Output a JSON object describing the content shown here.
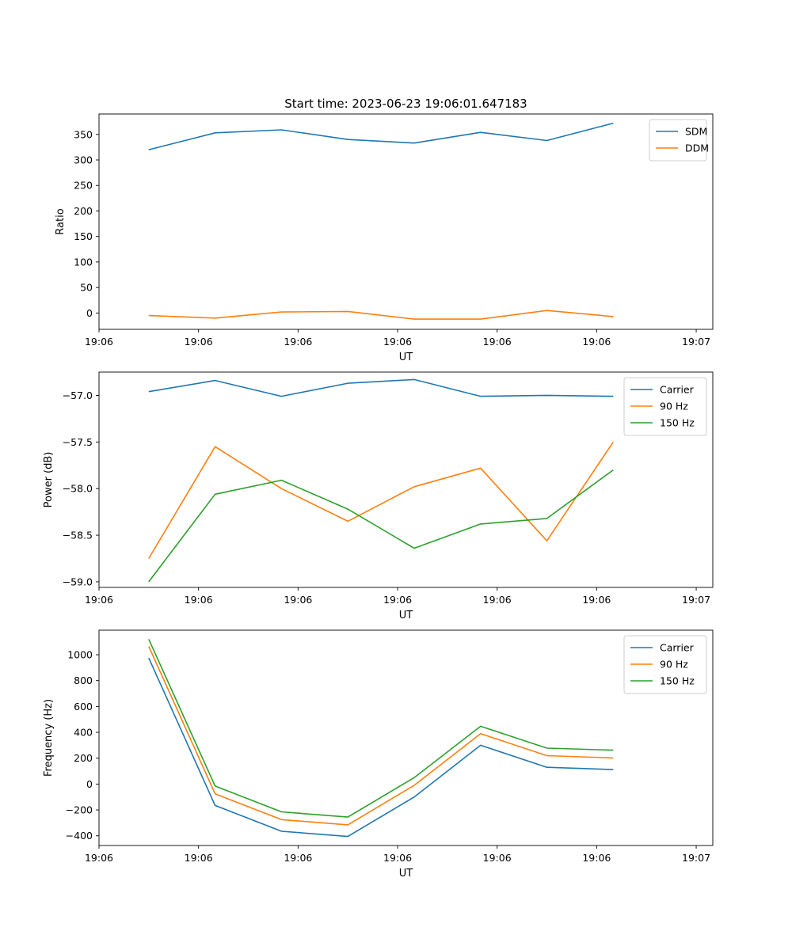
{
  "figure": {
    "title": "Start time: 2023-06-23 19:06:01.647183"
  },
  "colors": {
    "blue": "#1f77b4",
    "orange": "#ff7f0e",
    "green": "#2ca02c"
  },
  "chart_data": [
    {
      "type": "line",
      "title": "Start time: 2023-06-23 19:06:01.647183",
      "xlabel": "UT",
      "ylabel": "Ratio",
      "x_index": [
        0,
        1,
        2,
        3,
        4,
        5,
        6,
        7
      ],
      "xlim": [
        -0.75,
        8.5
      ],
      "xticks": [
        {
          "at": -0.75,
          "label": "19:06"
        },
        {
          "at": 0.75,
          "label": "19:06"
        },
        {
          "at": 2.25,
          "label": "19:06"
        },
        {
          "at": 3.75,
          "label": "19:06"
        },
        {
          "at": 5.25,
          "label": "19:06"
        },
        {
          "at": 6.75,
          "label": "19:06"
        },
        {
          "at": 8.25,
          "label": "19:07"
        }
      ],
      "ylim": [
        -32,
        390
      ],
      "yticks": [
        0,
        50,
        100,
        150,
        200,
        250,
        300,
        350
      ],
      "ytick_labels": [
        "0",
        "50",
        "100",
        "150",
        "200",
        "250",
        "300",
        "350"
      ],
      "legend": "upper-right",
      "series": [
        {
          "name": "SDM",
          "color": "#1f77b4",
          "values": [
            320,
            353,
            359,
            340,
            333,
            354,
            338,
            372
          ]
        },
        {
          "name": "DDM",
          "color": "#ff7f0e",
          "values": [
            -5,
            -10,
            2,
            3,
            -12,
            -12,
            5,
            -7
          ]
        }
      ]
    },
    {
      "type": "line",
      "xlabel": "UT",
      "ylabel": "Power (dB)",
      "x_index": [
        0,
        1,
        2,
        3,
        4,
        5,
        6,
        7
      ],
      "xlim": [
        -0.75,
        8.5
      ],
      "xticks": [
        {
          "at": -0.75,
          "label": "19:06"
        },
        {
          "at": 0.75,
          "label": "19:06"
        },
        {
          "at": 2.25,
          "label": "19:06"
        },
        {
          "at": 3.75,
          "label": "19:06"
        },
        {
          "at": 5.25,
          "label": "19:06"
        },
        {
          "at": 6.75,
          "label": "19:06"
        },
        {
          "at": 8.25,
          "label": "19:07"
        }
      ],
      "ylim": [
        -59.06,
        -56.75
      ],
      "yticks": [
        -59.0,
        -58.5,
        -58.0,
        -57.5,
        -57.0
      ],
      "ytick_labels": [
        "−59.0",
        "−58.5",
        "−58.0",
        "−57.5",
        "−57.0"
      ],
      "legend": "upper-right",
      "series": [
        {
          "name": "Carrier",
          "color": "#1f77b4",
          "values": [
            -56.96,
            -56.84,
            -57.01,
            -56.87,
            -56.83,
            -57.01,
            -57.0,
            -57.01
          ]
        },
        {
          "name": "90 Hz",
          "color": "#ff7f0e",
          "values": [
            -58.75,
            -57.55,
            -58.0,
            -58.35,
            -57.98,
            -57.78,
            -58.56,
            -57.5
          ]
        },
        {
          "name": "150 Hz",
          "color": "#2ca02c",
          "values": [
            -59.0,
            -58.06,
            -57.91,
            -58.22,
            -58.64,
            -58.38,
            -58.32,
            -57.8
          ]
        }
      ]
    },
    {
      "type": "line",
      "xlabel": "UT",
      "ylabel": "Frequency (Hz)",
      "x_index": [
        0,
        1,
        2,
        3,
        4,
        5,
        6,
        7
      ],
      "xlim": [
        -0.75,
        8.5
      ],
      "xticks": [
        {
          "at": -0.75,
          "label": "19:06"
        },
        {
          "at": 0.75,
          "label": "19:06"
        },
        {
          "at": 2.25,
          "label": "19:06"
        },
        {
          "at": 3.75,
          "label": "19:06"
        },
        {
          "at": 5.25,
          "label": "19:06"
        },
        {
          "at": 6.75,
          "label": "19:06"
        },
        {
          "at": 8.25,
          "label": "19:07"
        }
      ],
      "ylim": [
        -475,
        1190
      ],
      "yticks": [
        -400,
        -200,
        0,
        200,
        400,
        600,
        800,
        1000
      ],
      "ytick_labels": [
        "−400",
        "−200",
        "0",
        "200",
        "400",
        "600",
        "800",
        "1000"
      ],
      "legend": "upper-right",
      "series": [
        {
          "name": "Carrier",
          "color": "#1f77b4",
          "values": [
            975,
            -165,
            -365,
            -405,
            -100,
            300,
            130,
            112
          ]
        },
        {
          "name": "90 Hz",
          "color": "#ff7f0e",
          "values": [
            1065,
            -75,
            -275,
            -315,
            -10,
            390,
            220,
            202
          ]
        },
        {
          "name": "150 Hz",
          "color": "#2ca02c",
          "values": [
            1120,
            -15,
            -215,
            -255,
            50,
            447,
            278,
            262
          ]
        }
      ]
    }
  ]
}
